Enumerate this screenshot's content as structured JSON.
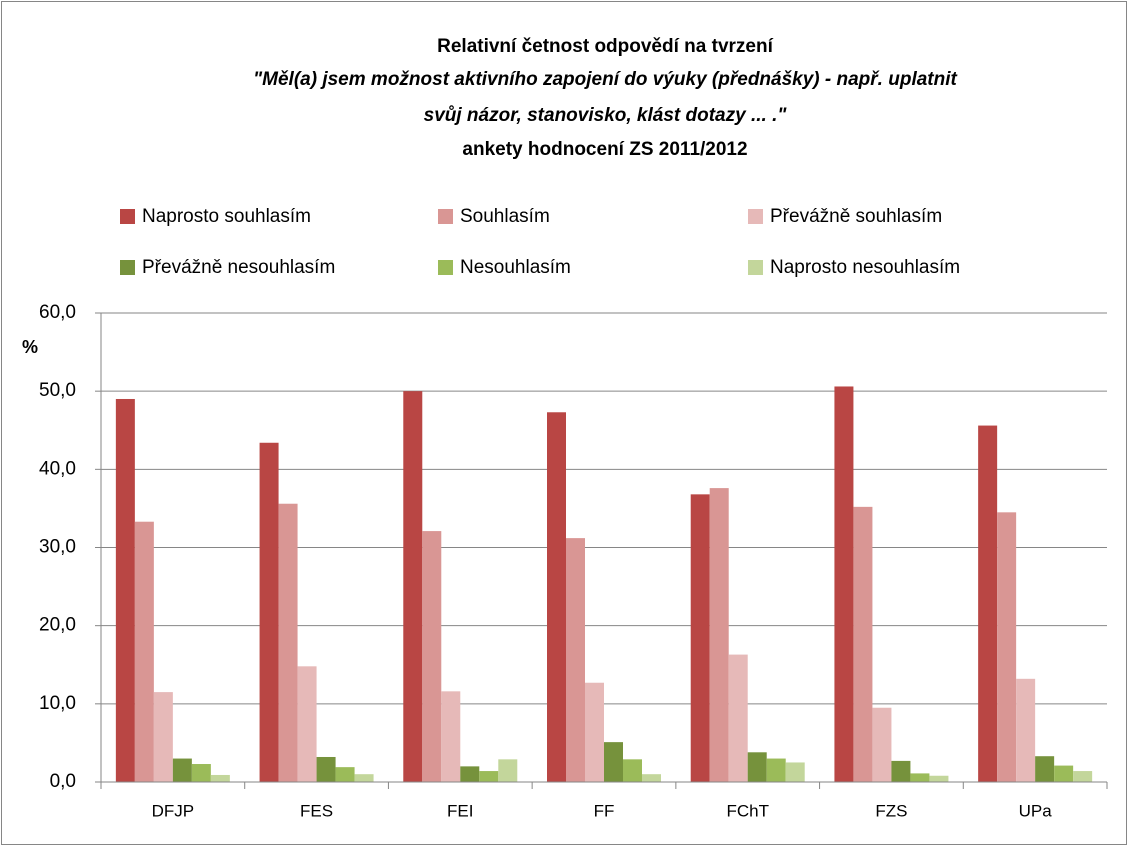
{
  "chart_data": {
    "type": "bar",
    "title_lines": [
      "Relativní četnost odpovědí na tvrzení",
      "\"Měl(a) jsem možnost aktivního zapojení do výuky (přednášky) - např. uplatnit",
      "svůj názor, stanovisko, klást dotazy ... .\"",
      "ankety hodnocení ZS 2011/2012"
    ],
    "y_label": "%",
    "categories": [
      "DFJP",
      "FES",
      "FEI",
      "FF",
      "FChT",
      "FZS",
      "UPa"
    ],
    "series": [
      {
        "name": "Naprosto souhlasím",
        "color": "#b94644",
        "values": [
          49.0,
          43.4,
          50.0,
          47.3,
          36.8,
          50.6,
          45.6
        ]
      },
      {
        "name": "Souhlasím",
        "color": "#d99694",
        "values": [
          33.3,
          35.6,
          32.1,
          31.2,
          37.6,
          35.2,
          34.5
        ]
      },
      {
        "name": "Převážně souhlasím",
        "color": "#e6b9b8",
        "values": [
          11.5,
          14.8,
          11.6,
          12.7,
          16.3,
          9.5,
          13.2
        ]
      },
      {
        "name": "Převážně nesouhlasím",
        "color": "#76923c",
        "values": [
          3.0,
          3.2,
          2.0,
          5.1,
          3.8,
          2.7,
          3.3
        ]
      },
      {
        "name": "Nesouhlasím",
        "color": "#9bbb59",
        "values": [
          2.3,
          1.9,
          1.4,
          2.9,
          3.0,
          1.1,
          2.1
        ]
      },
      {
        "name": "Naprosto nesouhlasím",
        "color": "#c3d69b",
        "values": [
          0.9,
          1.0,
          2.9,
          1.0,
          2.5,
          0.8,
          1.4
        ]
      }
    ],
    "ylim": [
      0,
      60
    ],
    "yticks": [
      {
        "value": 0,
        "label": "0,0"
      },
      {
        "value": 10,
        "label": "10,0"
      },
      {
        "value": 20,
        "label": "20,0"
      },
      {
        "value": 30,
        "label": "30,0"
      },
      {
        "value": 40,
        "label": "40,0"
      },
      {
        "value": 50,
        "label": "50,0"
      },
      {
        "value": 60,
        "label": "60,0"
      }
    ],
    "grid": true,
    "legend": "top"
  }
}
